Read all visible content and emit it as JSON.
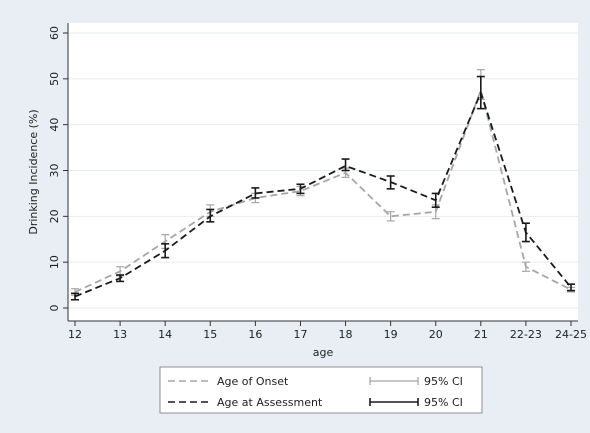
{
  "chart_data": {
    "type": "line",
    "title": "",
    "xlabel": "age",
    "ylabel": "Drinking Incidence (%)",
    "ylim": [
      0,
      60
    ],
    "yticks": [
      0,
      10,
      20,
      30,
      40,
      50,
      60
    ],
    "categories": [
      "12",
      "13",
      "14",
      "15",
      "16",
      "17",
      "18",
      "19",
      "20",
      "21",
      "22-23",
      "24-25"
    ],
    "grid": true,
    "legend_position": "bottom",
    "series": [
      {
        "name": "Age of Onset",
        "color": "#a6a6a6",
        "values": [
          3.5,
          8,
          14.5,
          21,
          24,
          25.5,
          29.5,
          20,
          21,
          47.5,
          9,
          4
        ],
        "ci": [
          [
            2.8,
            4.2
          ],
          [
            7.0,
            9.0
          ],
          [
            13.0,
            16.0
          ],
          [
            20.0,
            22.5
          ],
          [
            23.0,
            25.0
          ],
          [
            24.5,
            26.5
          ],
          [
            28.5,
            30.5
          ],
          [
            19.0,
            21.0
          ],
          [
            19.5,
            22.5
          ],
          [
            45.5,
            52.0
          ],
          [
            8.0,
            10.0
          ],
          [
            3.5,
            4.5
          ]
        ]
      },
      {
        "name": "Age at Assessment",
        "color": "#1a1a1a",
        "values": [
          2.5,
          6.5,
          12.5,
          20,
          25,
          26,
          31,
          27.5,
          23.5,
          47,
          16.5,
          4.5
        ],
        "ci": [
          [
            1.8,
            3.2
          ],
          [
            5.8,
            7.2
          ],
          [
            11.0,
            14.0
          ],
          [
            18.8,
            21.5
          ],
          [
            24.0,
            26.2
          ],
          [
            25.0,
            27.0
          ],
          [
            30.0,
            32.5
          ],
          [
            26.0,
            28.8
          ],
          [
            22.0,
            25.0
          ],
          [
            43.5,
            50.5
          ],
          [
            14.5,
            18.5
          ],
          [
            3.8,
            5.2
          ]
        ]
      }
    ],
    "legend": [
      {
        "label": "Age of Onset",
        "ci_label": "95% CI"
      },
      {
        "label": "Age at Assessment",
        "ci_label": "95% CI"
      }
    ]
  }
}
